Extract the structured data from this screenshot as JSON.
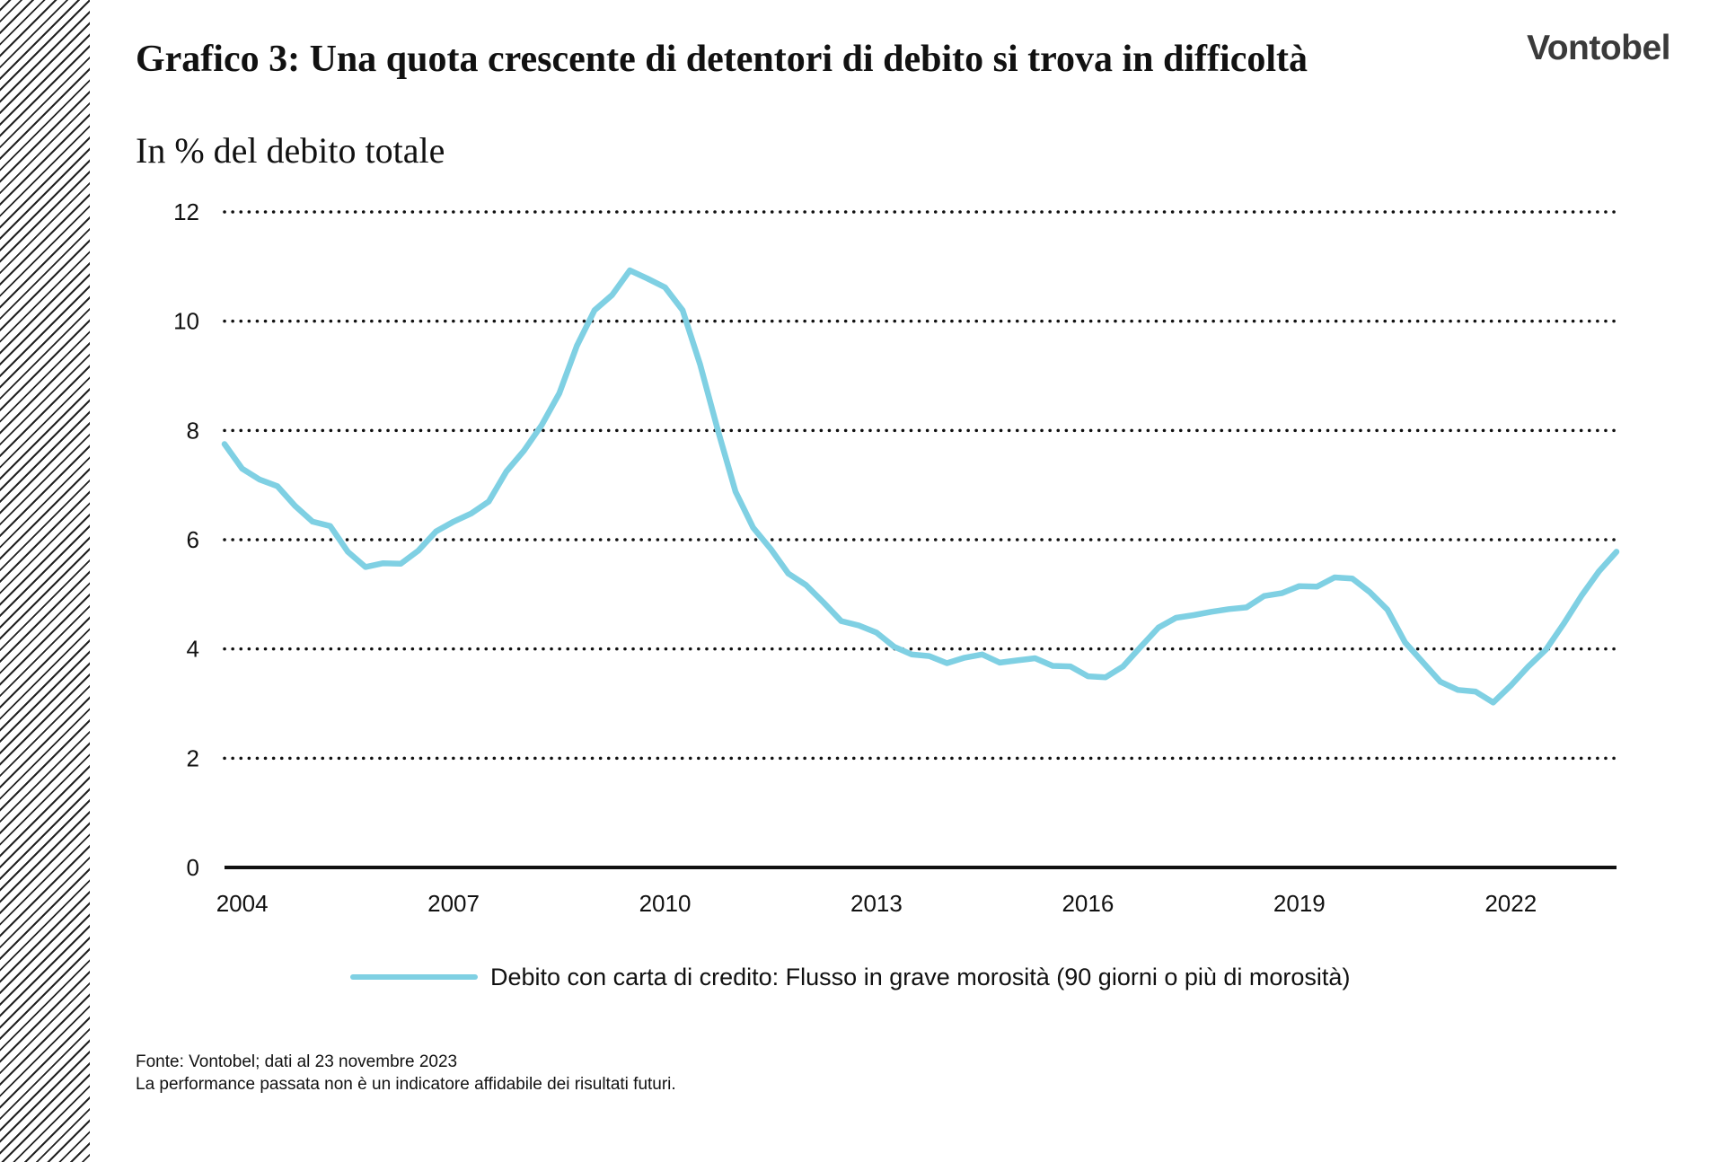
{
  "header": {
    "title": "Grafico 3: Una quota crescente di detentori di debito si trova in difficoltà",
    "subtitle": "In % del debito totale",
    "logo": "Vontobel"
  },
  "footer": {
    "source": "Fonte: Vontobel; dati al 23 novembre 2023",
    "disclaimer": "La performance passata non è un indicatore affidabile dei risultati futuri."
  },
  "colors": {
    "series": "#7fd0e3",
    "grid": "#111111",
    "axis": "#111111"
  },
  "chart_data": {
    "type": "line",
    "title": "Grafico 3: Una quota crescente di detentori di debito si trova in difficoltà",
    "subtitle": "In % del debito totale",
    "xlabel": "",
    "ylabel": "",
    "xlim": [
      2003.75,
      2023.5
    ],
    "ylim": [
      0,
      12
    ],
    "yticks": [
      0,
      2,
      4,
      6,
      8,
      10,
      12
    ],
    "xticks": [
      2004,
      2007,
      2010,
      2013,
      2016,
      2019,
      2022
    ],
    "grid": "horizontal-dotted",
    "legend_position": "bottom-center",
    "series": [
      {
        "name": "Debito con carta di credito: Flusso in grave morosità (90 giorni o più di morosità)",
        "color": "#7fd0e3",
        "x": [
          2003.75,
          2004.0,
          2004.25,
          2004.5,
          2004.75,
          2005.0,
          2005.25,
          2005.5,
          2005.75,
          2006.0,
          2006.25,
          2006.5,
          2006.75,
          2007.0,
          2007.25,
          2007.5,
          2007.75,
          2008.0,
          2008.25,
          2008.5,
          2008.75,
          2009.0,
          2009.25,
          2009.5,
          2009.75,
          2010.0,
          2010.25,
          2010.5,
          2010.75,
          2011.0,
          2011.25,
          2011.5,
          2011.75,
          2012.0,
          2012.25,
          2012.5,
          2012.75,
          2013.0,
          2013.25,
          2013.5,
          2013.75,
          2014.0,
          2014.25,
          2014.5,
          2014.75,
          2015.0,
          2015.25,
          2015.5,
          2015.75,
          2016.0,
          2016.25,
          2016.5,
          2016.75,
          2017.0,
          2017.25,
          2017.5,
          2017.75,
          2018.0,
          2018.25,
          2018.5,
          2018.75,
          2019.0,
          2019.25,
          2019.5,
          2019.75,
          2020.0,
          2020.25,
          2020.5,
          2020.75,
          2021.0,
          2021.25,
          2021.5,
          2021.75,
          2022.0,
          2022.25,
          2022.5,
          2022.75,
          2023.0,
          2023.25,
          2023.5
        ],
        "values": [
          7.75,
          7.3,
          7.1,
          6.98,
          6.62,
          6.33,
          6.25,
          5.78,
          5.5,
          5.57,
          5.56,
          5.8,
          6.15,
          6.33,
          6.48,
          6.7,
          7.25,
          7.63,
          8.1,
          8.68,
          9.55,
          10.2,
          10.48,
          10.93,
          10.78,
          10.62,
          10.2,
          9.2,
          8.0,
          6.88,
          6.22,
          5.83,
          5.38,
          5.17,
          4.85,
          4.51,
          4.43,
          4.3,
          4.04,
          3.9,
          3.87,
          3.74,
          3.84,
          3.9,
          3.75,
          3.79,
          3.83,
          3.69,
          3.68,
          3.5,
          3.48,
          3.68,
          4.04,
          4.39,
          4.57,
          4.62,
          4.68,
          4.73,
          4.76,
          4.97,
          5.02,
          5.15,
          5.14,
          5.31,
          5.29,
          5.04,
          4.72,
          4.12,
          3.76,
          3.4,
          3.25,
          3.22,
          3.02,
          3.33,
          3.68,
          3.99,
          4.46,
          4.97,
          5.42,
          5.78
        ]
      }
    ]
  }
}
